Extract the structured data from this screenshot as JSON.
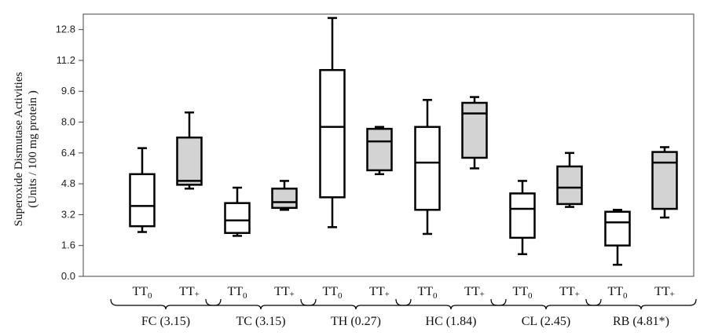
{
  "chart_data": {
    "type": "box",
    "ylabel_line1": "Superoxide Dismutase  Activities",
    "ylabel_line2": "(Units / 100 mg protein )",
    "ylim": [
      0.0,
      13.6
    ],
    "yticks": [
      "0.0",
      "1.6",
      "3.2",
      "4.8",
      "6.4",
      "8.0",
      "9.6",
      "11.2",
      "12.8"
    ],
    "grid": false,
    "groups": [
      {
        "label": "FC (3.15)"
      },
      {
        "label": "TC (3.15)"
      },
      {
        "label": "TH (0.27)"
      },
      {
        "label": "HC (1.84)"
      },
      {
        "label": "CL (2.45)"
      },
      {
        "label": "RB (4.81*)"
      }
    ],
    "categories": [
      {
        "base": "TT",
        "sub": "0"
      },
      {
        "base": "TT",
        "sub": "+"
      }
    ],
    "boxes": [
      {
        "group": 0,
        "category": 0,
        "min": 2.3,
        "q1": 2.6,
        "median": 3.65,
        "q3": 5.3,
        "max": 6.65,
        "fill": "#ffffff"
      },
      {
        "group": 0,
        "category": 1,
        "min": 4.55,
        "q1": 4.75,
        "median": 4.95,
        "q3": 7.2,
        "max": 8.5,
        "fill": "#d3d3d3"
      },
      {
        "group": 1,
        "category": 0,
        "min": 2.1,
        "q1": 2.25,
        "median": 2.9,
        "q3": 3.8,
        "max": 4.6,
        "fill": "#ffffff"
      },
      {
        "group": 1,
        "category": 1,
        "min": 3.45,
        "q1": 3.55,
        "median": 3.85,
        "q3": 4.55,
        "max": 4.95,
        "fill": "#d3d3d3"
      },
      {
        "group": 2,
        "category": 0,
        "min": 2.55,
        "q1": 4.1,
        "median": 7.75,
        "q3": 10.7,
        "max": 13.4,
        "fill": "#ffffff"
      },
      {
        "group": 2,
        "category": 1,
        "min": 5.3,
        "q1": 5.5,
        "median": 7.0,
        "q3": 7.65,
        "max": 7.75,
        "fill": "#d3d3d3"
      },
      {
        "group": 3,
        "category": 0,
        "min": 2.2,
        "q1": 3.45,
        "median": 5.9,
        "q3": 7.75,
        "max": 9.15,
        "fill": "#ffffff"
      },
      {
        "group": 3,
        "category": 1,
        "min": 5.6,
        "q1": 6.15,
        "median": 8.45,
        "q3": 9.0,
        "max": 9.3,
        "fill": "#d3d3d3"
      },
      {
        "group": 4,
        "category": 0,
        "min": 1.15,
        "q1": 2.0,
        "median": 3.5,
        "q3": 4.3,
        "max": 4.95,
        "fill": "#ffffff"
      },
      {
        "group": 4,
        "category": 1,
        "min": 3.6,
        "q1": 3.75,
        "median": 4.6,
        "q3": 5.7,
        "max": 6.4,
        "fill": "#d3d3d3"
      },
      {
        "group": 5,
        "category": 0,
        "min": 0.6,
        "q1": 1.6,
        "median": 2.8,
        "q3": 3.35,
        "max": 3.45,
        "fill": "#ffffff"
      },
      {
        "group": 5,
        "category": 1,
        "min": 3.05,
        "q1": 3.5,
        "median": 5.9,
        "q3": 6.45,
        "max": 6.7,
        "fill": "#d3d3d3"
      }
    ]
  }
}
